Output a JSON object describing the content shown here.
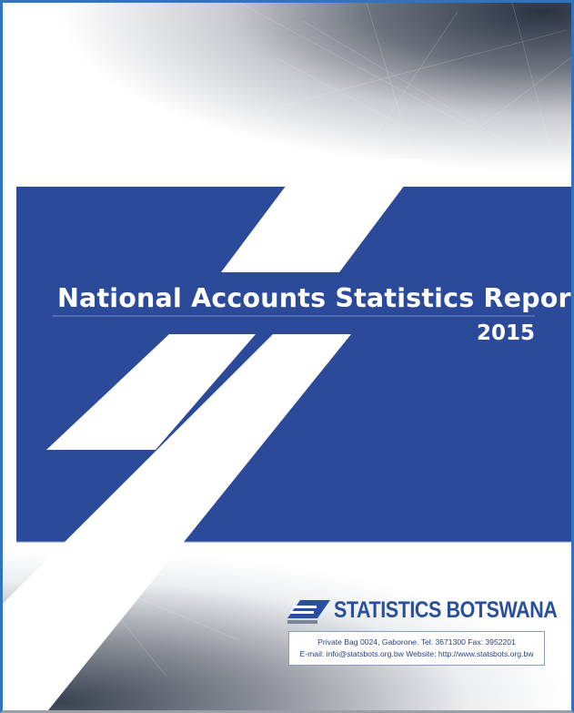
{
  "title": "National Accounts Statistics Report",
  "year": "2015",
  "organization": "STATISTICS BOTSWANA",
  "contact": [
    "Private Bag 0024, Gaborone. Tel: 3671300 Fax: 3952201",
    "E-mail: info@statsbots.org.bw Website: http://www.statsbots.org.bw"
  ]
}
